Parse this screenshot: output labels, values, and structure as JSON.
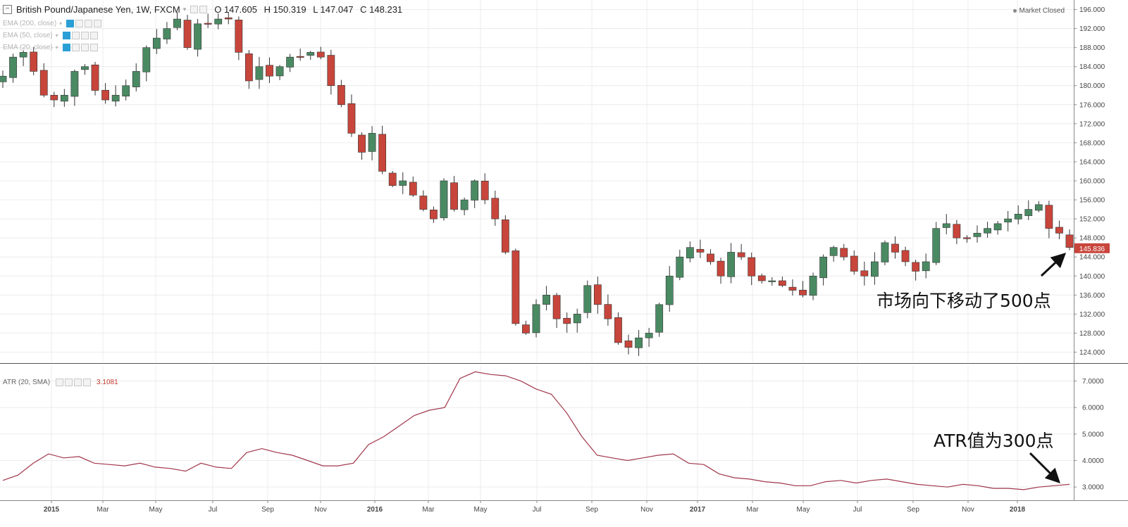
{
  "header": {
    "title": "British Pound/Japanese Yen, 1W, FXCM",
    "open": "O 147.605",
    "high": "H 150.319",
    "low": "L 147.047",
    "close": "C 148.231",
    "market_status": "Market Closed"
  },
  "indicators": [
    {
      "label": "EMA (200, close)"
    },
    {
      "label": "EMA (50, close)"
    },
    {
      "label": "EMA (20, close)"
    }
  ],
  "atr": {
    "label": "ATR (20, SMA)",
    "value": "3.1081"
  },
  "price_tag": "145.836",
  "annotations": {
    "price_move": "市场向下移动了500点",
    "atr_value": "ATR值为300点"
  },
  "colors": {
    "up": "#4a8a63",
    "down": "#c8453b",
    "atr_line": "#a0374a",
    "grid": "#ececec",
    "axis_text": "#444444"
  },
  "chart_data": [
    {
      "type": "candlestick",
      "title": "British Pound/Japanese Yen, 1W, FXCM",
      "interval": "1W",
      "ylim": [
        122,
        198
      ],
      "y_ticks": [
        "124.000",
        "128.000",
        "132.000",
        "136.000",
        "140.000",
        "144.000",
        "148.000",
        "152.000",
        "156.000",
        "160.000",
        "164.000",
        "168.000",
        "172.000",
        "176.000",
        "180.000",
        "184.000",
        "188.000",
        "192.000",
        "196.000"
      ],
      "x_ticks": [
        "2015",
        "Mar",
        "May",
        "Jul",
        "Sep",
        "Nov",
        "2016",
        "Mar",
        "May",
        "Jul",
        "Sep",
        "Nov",
        "2017",
        "Mar",
        "May",
        "Jul",
        "Sep",
        "Nov",
        "2018"
      ],
      "x_ticks_bold": [
        "2015",
        "2016",
        "2017",
        "2018"
      ],
      "last_price": 145.836,
      "close_keypoints": [
        182,
        186,
        187,
        183,
        178,
        177,
        178,
        183,
        184,
        179,
        177,
        178,
        180,
        183,
        188,
        190,
        192,
        194,
        188,
        193,
        193,
        194,
        194,
        187,
        181,
        184,
        182,
        184,
        186,
        186,
        187,
        186,
        180,
        176,
        170,
        166,
        170,
        162,
        159,
        160,
        157,
        154,
        152,
        160,
        154,
        156,
        160,
        156,
        152,
        145,
        130,
        128,
        134,
        136,
        131,
        130,
        132,
        138,
        134,
        131,
        126,
        125,
        127,
        128,
        134,
        140,
        144,
        146,
        145,
        143,
        140,
        145,
        144,
        140,
        139,
        139,
        138,
        137,
        136,
        140,
        144,
        146,
        144,
        141,
        140,
        143,
        147,
        145,
        143,
        141,
        143,
        150,
        151,
        148,
        148,
        149,
        150,
        151,
        152,
        153,
        154,
        155,
        150,
        149,
        146
      ]
    },
    {
      "type": "line",
      "title": "ATR (20, SMA)",
      "ylim": [
        2.5,
        7.6
      ],
      "y_ticks": [
        "3.0000",
        "4.0000",
        "5.0000",
        "6.0000",
        "7.0000"
      ],
      "series": [
        {
          "name": "ATR (20, SMA)",
          "last_value": 3.1081,
          "values": [
            3.25,
            3.45,
            3.9,
            4.25,
            4.1,
            4.15,
            3.9,
            3.85,
            3.8,
            3.9,
            3.75,
            3.7,
            3.6,
            3.9,
            3.75,
            3.7,
            4.3,
            4.45,
            4.3,
            4.2,
            4.0,
            3.8,
            3.8,
            3.9,
            4.6,
            4.9,
            5.3,
            5.7,
            5.9,
            6.0,
            7.1,
            7.35,
            7.25,
            7.2,
            7.0,
            6.7,
            6.5,
            5.8,
            4.9,
            4.2,
            4.1,
            4.0,
            4.1,
            4.2,
            4.25,
            3.9,
            3.85,
            3.5,
            3.35,
            3.3,
            3.2,
            3.15,
            3.05,
            3.05,
            3.2,
            3.25,
            3.15,
            3.25,
            3.3,
            3.2,
            3.1,
            3.05,
            3.0,
            3.1,
            3.05,
            2.95,
            2.95,
            2.9,
            3.0,
            3.05,
            3.1
          ]
        }
      ]
    }
  ]
}
